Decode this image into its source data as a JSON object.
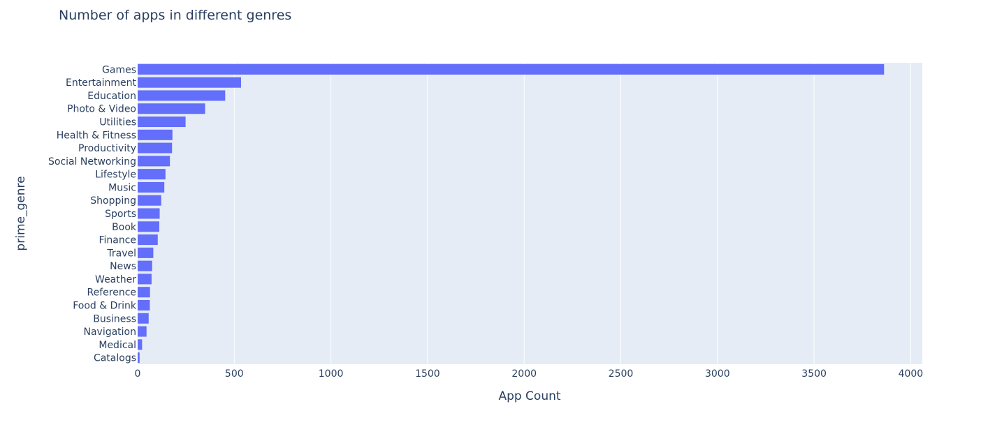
{
  "chart_data": {
    "type": "bar",
    "orientation": "horizontal",
    "title": "Number of apps in different genres",
    "xlabel": "App Count",
    "ylabel": "prime_genre",
    "xlim": [
      0,
      4060
    ],
    "xticks": [
      0,
      500,
      1000,
      1500,
      2000,
      2500,
      3000,
      3500,
      4000
    ],
    "grid": true,
    "legend": "none",
    "bar_color": "#636efa",
    "plot_background": "#e5ecf6",
    "categories": [
      "Games",
      "Entertainment",
      "Education",
      "Photo & Video",
      "Utilities",
      "Health & Fitness",
      "Productivity",
      "Social Networking",
      "Lifestyle",
      "Music",
      "Shopping",
      "Sports",
      "Book",
      "Finance",
      "Travel",
      "News",
      "Weather",
      "Reference",
      "Food & Drink",
      "Business",
      "Navigation",
      "Medical",
      "Catalogs"
    ],
    "values": [
      3862,
      535,
      453,
      349,
      248,
      180,
      178,
      167,
      144,
      138,
      122,
      114,
      112,
      104,
      81,
      75,
      72,
      64,
      63,
      57,
      46,
      23,
      10
    ]
  }
}
